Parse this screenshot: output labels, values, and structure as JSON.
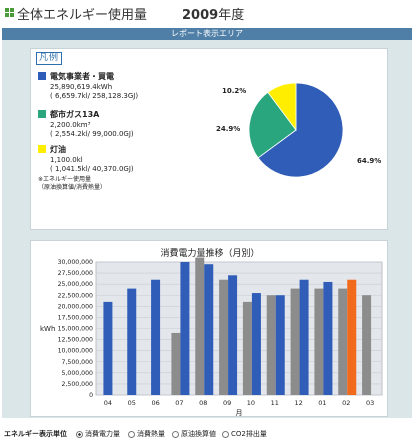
{
  "header": {
    "title": "全体エネルギー使用量",
    "year": "2009",
    "year_suffix": "年度"
  },
  "report_area_label": "レポート表示エリア",
  "legend": {
    "title": "凡例",
    "items": [
      {
        "name": "電気事業者・買電",
        "line1": "25,890,619.4kWh",
        "line2": "( 6,659.7kl/ 258,128.3GJ)",
        "color": "#2f5db8"
      },
      {
        "name": "都市ガス13A",
        "line1": "2,200.0km³",
        "line2": "( 2,554.2kl/ 99,000.0GJ)",
        "color": "#2aa67e"
      },
      {
        "name": "灯油",
        "line1": "1,100.0kl",
        "line2": "( 1,041.5kl/ 40,370.0GJ)",
        "color": "#ffee00"
      }
    ],
    "note_line1": "※エネルギー使用量",
    "note_line2": "（原油換算値/消費熱量）"
  },
  "pie_chart": {
    "slices": [
      {
        "label": "電気事業者・買電",
        "percent": 64.9,
        "percent_label": "64.9%",
        "color": "#2f5db8"
      },
      {
        "label": "都市ガス13A",
        "percent": 24.9,
        "percent_label": "24.9%",
        "color": "#2aa67e"
      },
      {
        "label": "灯油",
        "percent": 10.2,
        "percent_label": "10.2%",
        "color": "#ffee00"
      }
    ]
  },
  "chart_data": {
    "type": "bar",
    "title": "消費電力量推移（月別）",
    "xlabel": "月",
    "ylabel": "kWh",
    "ylim": [
      0,
      30000000
    ],
    "yticks": [
      0,
      2500000,
      5000000,
      7500000,
      10000000,
      12500000,
      15000000,
      17500000,
      20000000,
      22500000,
      25000000,
      27500000,
      30000000
    ],
    "ytick_labels": [
      "0",
      "2,500,000",
      "5,000,000",
      "7,500,000",
      "10,000,000",
      "12,500,000",
      "15,000,000",
      "17,500,000",
      "20,000,000",
      "22,500,000",
      "25,000,000",
      "27,500,000",
      "30,000,000"
    ],
    "categories": [
      "04",
      "05",
      "06",
      "07",
      "08",
      "09",
      "10",
      "11",
      "12",
      "01",
      "02",
      "03"
    ],
    "grid": true,
    "series": [
      {
        "values": [
          null,
          null,
          null,
          14000000,
          31000000,
          26000000,
          21000000,
          22500000,
          24000000,
          24000000,
          24000000,
          22500000
        ],
        "color": "#8c8c8c"
      },
      {
        "values": [
          21000000,
          24000000,
          26000000,
          30000000,
          29500000,
          27000000,
          23000000,
          22500000,
          26000000,
          25500000,
          26000000,
          null
        ],
        "color": "#2f5db8"
      }
    ],
    "highlight": {
      "category": "02",
      "color": "#f26b1d"
    }
  },
  "footer": {
    "label": "エネルギー表示単位",
    "options": [
      {
        "label": "消費電力量",
        "selected": true
      },
      {
        "label": "消費熱量",
        "selected": false
      },
      {
        "label": "原油換算値",
        "selected": false
      },
      {
        "label": "CO2排出量",
        "selected": false
      }
    ]
  }
}
